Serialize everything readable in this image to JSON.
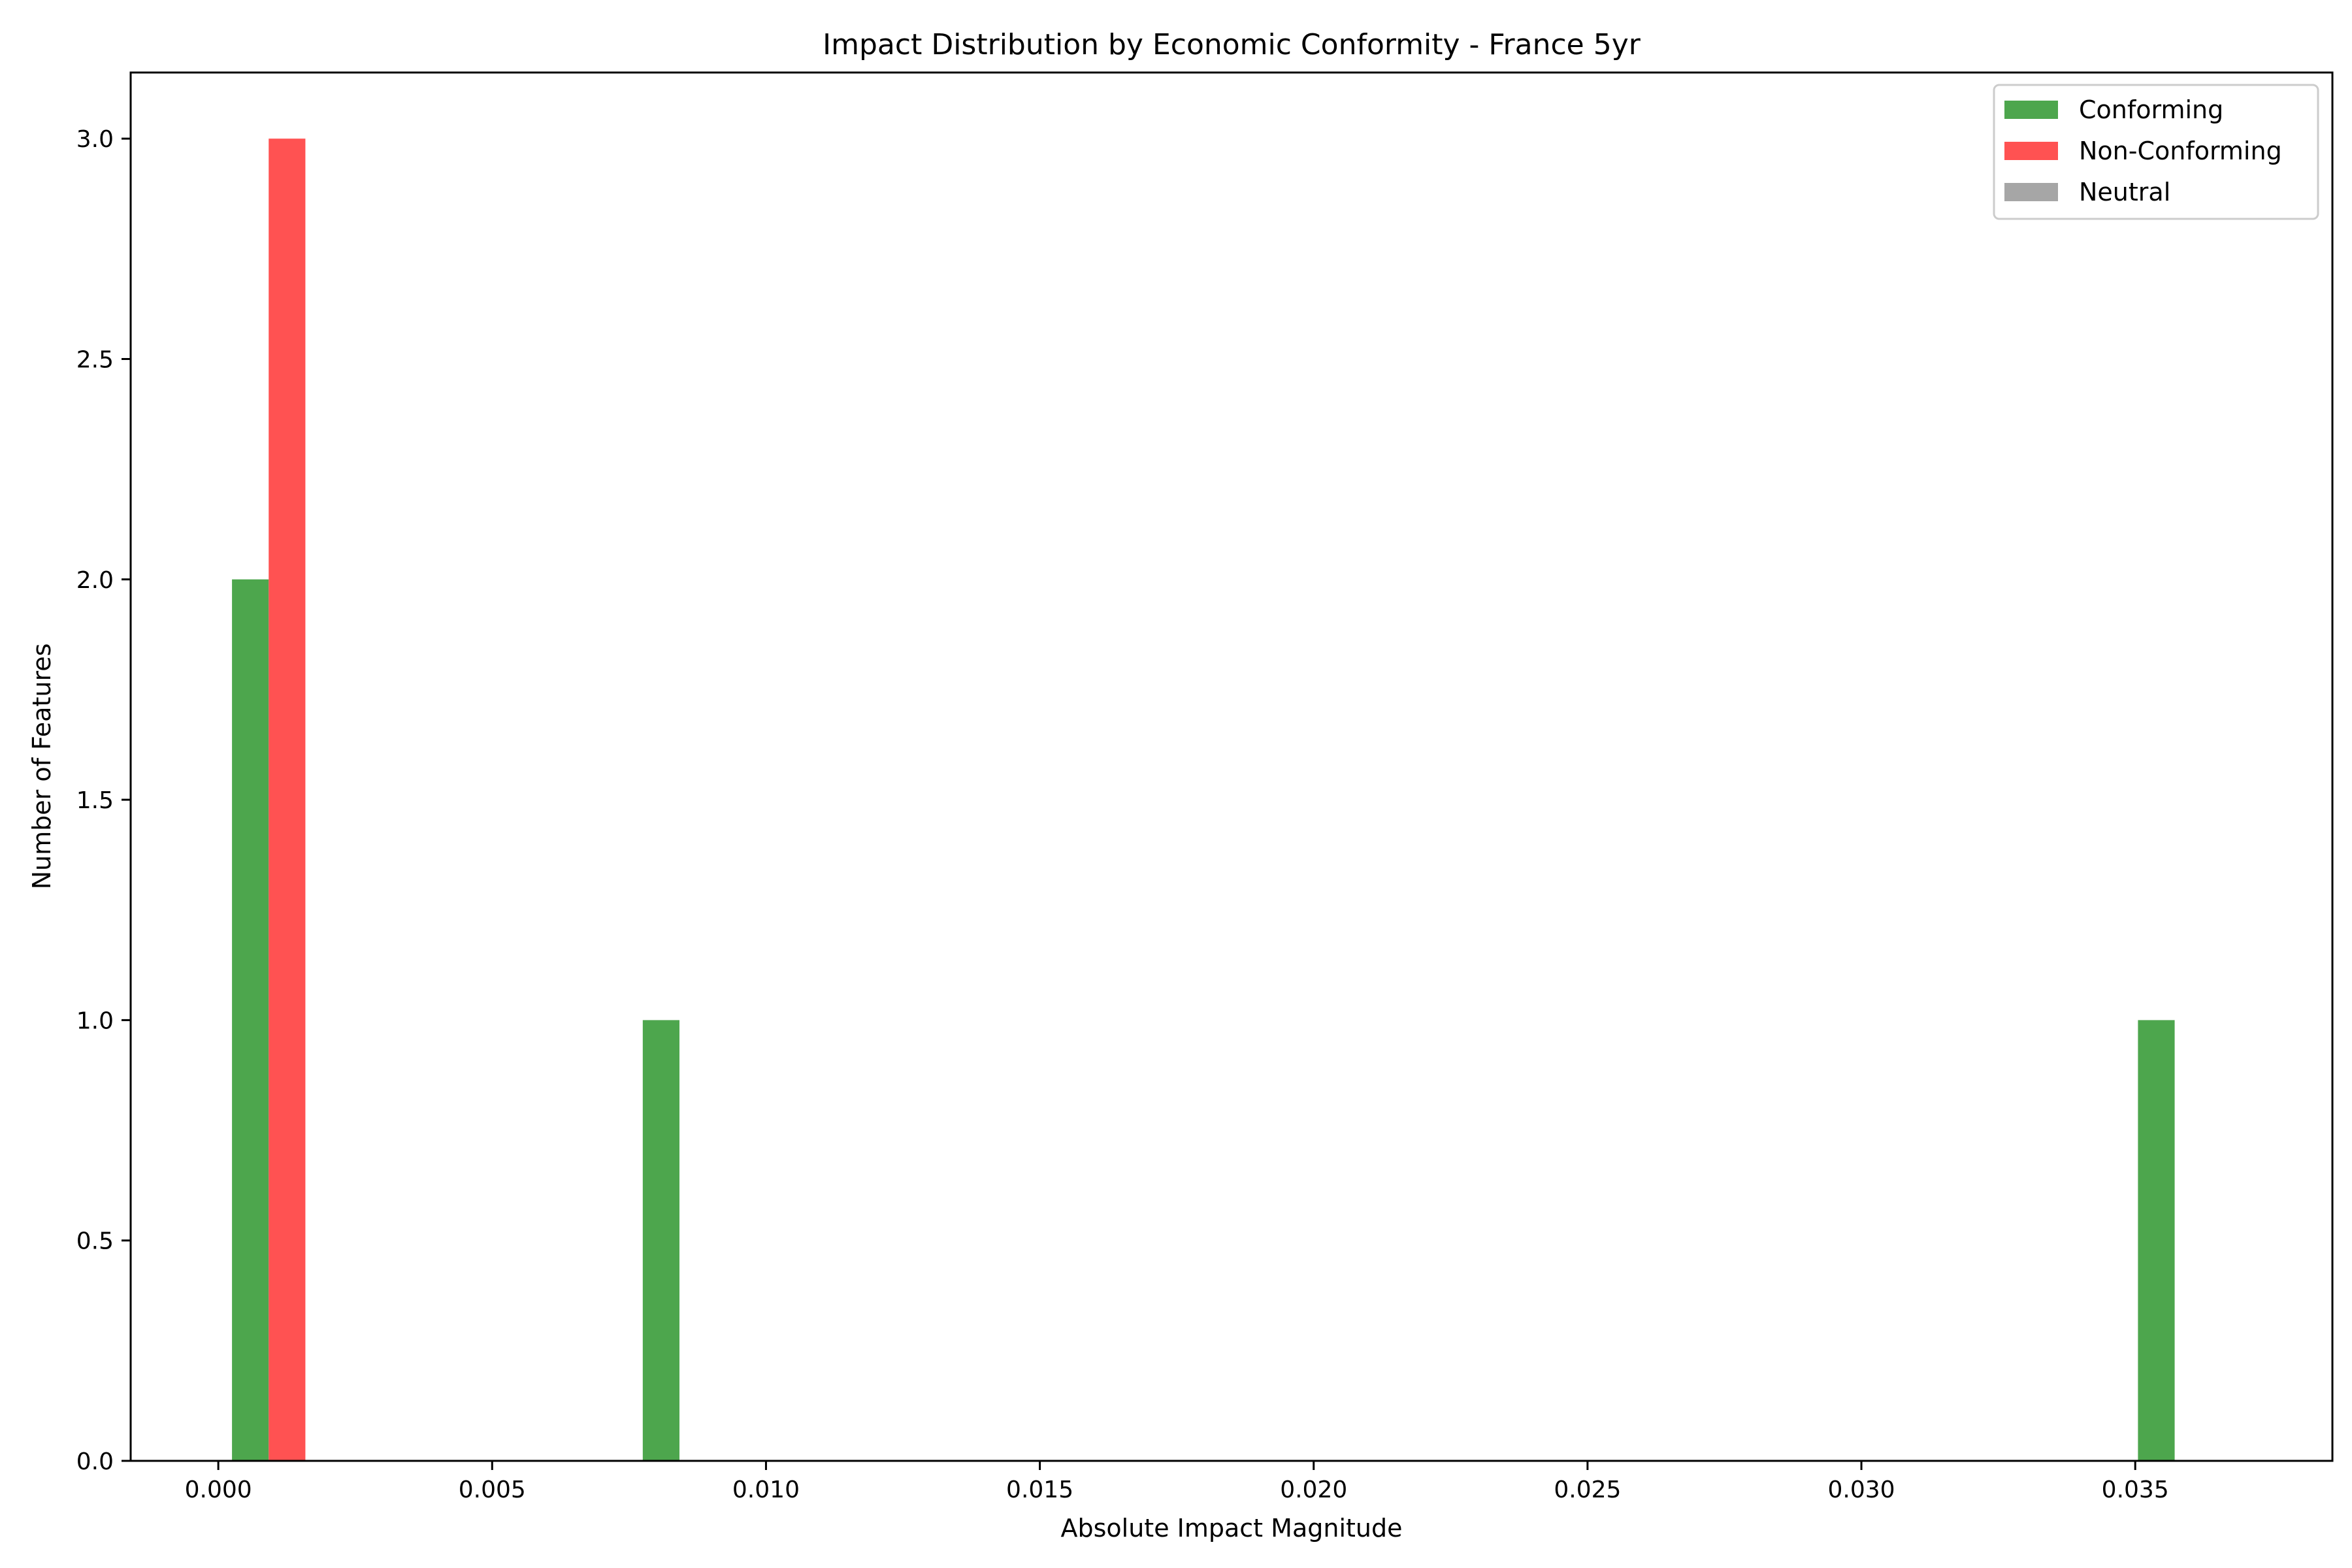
{
  "chart_data": {
    "type": "bar",
    "title": "Impact Distribution by Economic Conformity - France 5yr",
    "xlabel": "Absolute Impact Magnitude",
    "ylabel": "Number of Features",
    "xlim": [
      -0.0016,
      0.0386
    ],
    "ylim": [
      0,
      3.15
    ],
    "x_ticks": [
      0.0,
      0.005,
      0.01,
      0.015,
      0.02,
      0.025,
      0.03,
      0.035
    ],
    "x_tick_labels": [
      "0.000",
      "0.005",
      "0.010",
      "0.015",
      "0.020",
      "0.025",
      "0.030",
      "0.035"
    ],
    "y_ticks": [
      0.0,
      0.5,
      1.0,
      1.5,
      2.0,
      2.5,
      3.0
    ],
    "y_tick_labels": [
      "0.0",
      "0.5",
      "1.0",
      "1.5",
      "2.0",
      "2.5",
      "3.0"
    ],
    "grid": false,
    "legend_position": "top-right",
    "series": [
      {
        "name": "Conforming",
        "color": "#4da64d",
        "bars": [
          {
            "x_start": 0.00025,
            "x_end": 0.00092,
            "count": 2
          },
          {
            "x_start": 0.00775,
            "x_end": 0.00842,
            "count": 1
          },
          {
            "x_start": 0.03505,
            "x_end": 0.03572,
            "count": 1
          }
        ]
      },
      {
        "name": "Non-Conforming",
        "color": "#ff5252",
        "bars": [
          {
            "x_start": 0.00092,
            "x_end": 0.00159,
            "count": 3
          }
        ]
      },
      {
        "name": "Neutral",
        "color": "#a6a6a6",
        "bars": []
      }
    ]
  }
}
